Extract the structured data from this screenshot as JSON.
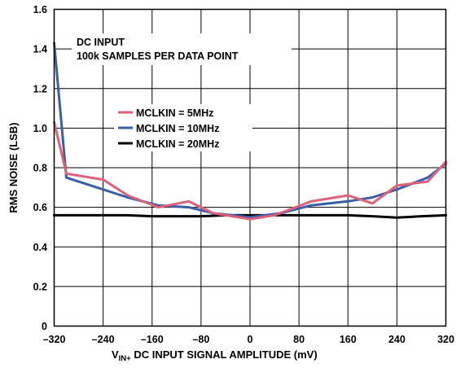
{
  "chart_data": {
    "type": "line",
    "annotations": [
      "DC INPUT",
      "100k SAMPLES PER DATA POINT"
    ],
    "xlabel": {
      "main": "V",
      "sub": "IN+",
      "rest": " DC INPUT SIGNAL AMPLITUDE (mV)"
    },
    "ylabel": "RMS NOISE (LSB)",
    "xlim": [
      -320,
      320
    ],
    "ylim": [
      0,
      1.6
    ],
    "x_ticks": [
      -320,
      -240,
      -160,
      -80,
      0,
      80,
      160,
      240,
      320
    ],
    "x_tick_labels": [
      "–320",
      "–240",
      "–160",
      "–80",
      "0",
      "80",
      "160",
      "240",
      "320"
    ],
    "y_ticks": [
      0,
      0.2,
      0.4,
      0.6,
      0.8,
      1.0,
      1.2,
      1.4,
      1.6
    ],
    "y_tick_labels": [
      "0",
      "0.2",
      "0.4",
      "0.6",
      "0.8",
      "1.0",
      "1.2",
      "1.4",
      "1.6"
    ],
    "grid": true,
    "legend_position": "center-left",
    "series": [
      {
        "name": "MCLKIN = 5MHz",
        "color": "#e0607a",
        "x": [
          -320,
          -300,
          -240,
          -200,
          -150,
          -100,
          -60,
          0,
          40,
          100,
          160,
          200,
          240,
          290,
          320
        ],
        "y": [
          1.03,
          0.77,
          0.74,
          0.66,
          0.6,
          0.63,
          0.57,
          0.54,
          0.56,
          0.63,
          0.66,
          0.62,
          0.71,
          0.73,
          0.83
        ]
      },
      {
        "name": "MCLKIN = 10MHz",
        "color": "#3a5ea8",
        "x": [
          -320,
          -300,
          -240,
          -200,
          -150,
          -100,
          -60,
          0,
          50,
          100,
          160,
          200,
          240,
          290,
          320
        ],
        "y": [
          1.43,
          0.75,
          0.69,
          0.65,
          0.61,
          0.6,
          0.57,
          0.55,
          0.57,
          0.61,
          0.63,
          0.65,
          0.69,
          0.75,
          0.82
        ]
      },
      {
        "name": "MCLKIN = 20MHz",
        "color": "#000000",
        "x": [
          -320,
          -280,
          -240,
          -200,
          -160,
          -120,
          -80,
          -40,
          0,
          40,
          80,
          120,
          160,
          200,
          240,
          280,
          320
        ],
        "y": [
          0.56,
          0.56,
          0.56,
          0.56,
          0.555,
          0.555,
          0.555,
          0.56,
          0.56,
          0.56,
          0.56,
          0.56,
          0.56,
          0.555,
          0.548,
          0.555,
          0.56
        ]
      }
    ]
  }
}
